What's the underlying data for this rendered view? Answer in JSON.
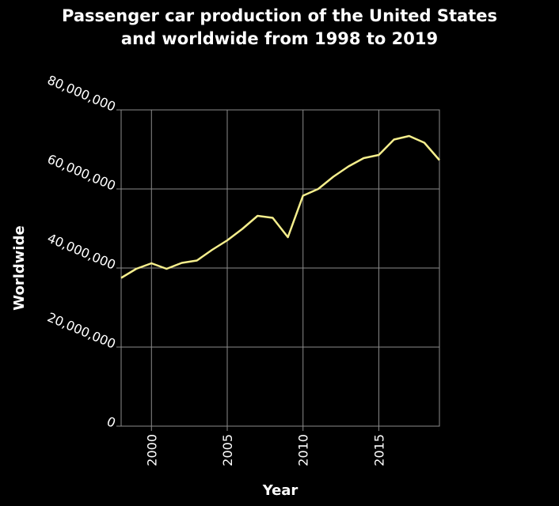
{
  "chart_data": {
    "type": "line",
    "title_lines": [
      "Passenger car production of the United States",
      "and worldwide from 1998 to 2019"
    ],
    "xlabel": "Year",
    "ylabel": "Worldwide",
    "xlim": [
      1998,
      2019
    ],
    "ylim": [
      0,
      80000000
    ],
    "x_ticks": [
      2000,
      2005,
      2010,
      2015
    ],
    "y_ticks": [
      0,
      20000000,
      40000000,
      60000000,
      80000000
    ],
    "y_tick_labels": [
      "0",
      "20,000,000",
      "40,000,000",
      "60,000,000",
      "80,000,000"
    ],
    "grid": true,
    "line_color": "#f5ee8c",
    "series": [
      {
        "x": [
          1998,
          1999,
          2000,
          2001,
          2002,
          2003,
          2004,
          2005,
          2006,
          2007,
          2008,
          2009,
          2010,
          2011,
          2012,
          2013,
          2014,
          2015,
          2016,
          2017,
          2018,
          2019
        ],
        "values": [
          37500000,
          39800000,
          41200000,
          39800000,
          41300000,
          41900000,
          44600000,
          47000000,
          49900000,
          53200000,
          52700000,
          47800000,
          58300000,
          60000000,
          63100000,
          65700000,
          67800000,
          68600000,
          72500000,
          73400000,
          71700000,
          67300000
        ]
      }
    ]
  }
}
